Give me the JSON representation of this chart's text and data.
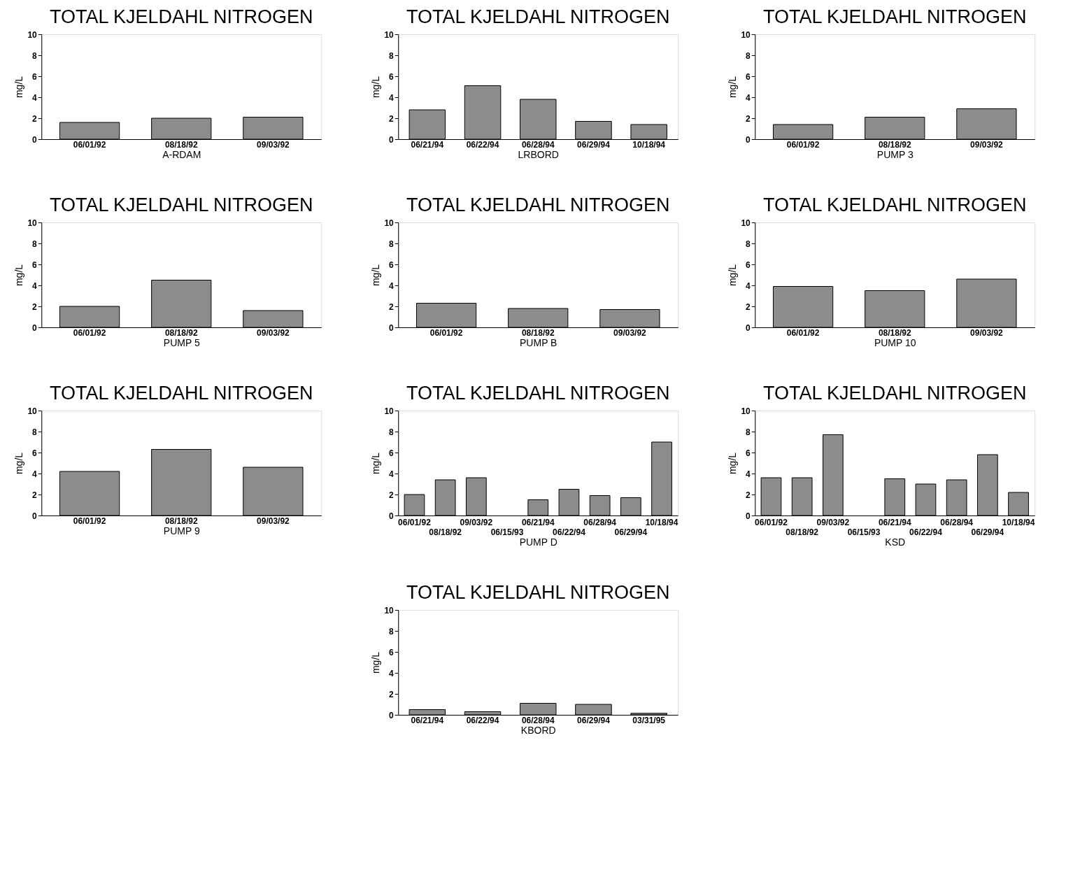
{
  "chart_data": [
    {
      "type": "bar",
      "title": "TOTAL KJELDAHL NITROGEN",
      "xlabel": "A-RDAM",
      "ylabel": "mg/L",
      "categories": [
        "06/01/92",
        "08/18/92",
        "09/03/92"
      ],
      "values": [
        1.6,
        2.0,
        2.1
      ],
      "color": "#8c8c8c",
      "ylim": [
        0,
        10
      ],
      "yticks": [
        0,
        2,
        4,
        6,
        8,
        10
      ]
    },
    {
      "type": "bar",
      "title": "TOTAL KJELDAHL NITROGEN",
      "xlabel": "LRBORD",
      "ylabel": "mg/L",
      "categories": [
        "06/21/94",
        "06/22/94",
        "06/28/94",
        "06/29/94",
        "10/18/94"
      ],
      "values": [
        2.8,
        5.1,
        3.8,
        1.7,
        1.4
      ],
      "color": "#8c8c8c",
      "ylim": [
        0,
        10
      ],
      "yticks": [
        0,
        2,
        4,
        6,
        8,
        10
      ]
    },
    {
      "type": "bar",
      "title": "TOTAL KJELDAHL NITROGEN",
      "xlabel": "PUMP 3",
      "ylabel": "mg/L",
      "categories": [
        "06/01/92",
        "08/18/92",
        "09/03/92"
      ],
      "values": [
        1.4,
        2.1,
        2.9
      ],
      "color": "#8c8c8c",
      "ylim": [
        0,
        10
      ],
      "yticks": [
        0,
        2,
        4,
        6,
        8,
        10
      ]
    },
    {
      "type": "bar",
      "title": "TOTAL KJELDAHL NITROGEN",
      "xlabel": "PUMP 5",
      "ylabel": "mg/L",
      "categories": [
        "06/01/92",
        "08/18/92",
        "09/03/92"
      ],
      "values": [
        2.0,
        4.5,
        1.6
      ],
      "color": "#8c8c8c",
      "ylim": [
        0,
        10
      ],
      "yticks": [
        0,
        2,
        4,
        6,
        8,
        10
      ]
    },
    {
      "type": "bar",
      "title": "TOTAL KJELDAHL NITROGEN",
      "xlabel": "PUMP B",
      "ylabel": "mg/L",
      "categories": [
        "06/01/92",
        "08/18/92",
        "09/03/92"
      ],
      "values": [
        2.3,
        1.8,
        1.7
      ],
      "color": "#8c8c8c",
      "ylim": [
        0,
        10
      ],
      "yticks": [
        0,
        2,
        4,
        6,
        8,
        10
      ]
    },
    {
      "type": "bar",
      "title": "TOTAL KJELDAHL NITROGEN",
      "xlabel": "PUMP 10",
      "ylabel": "mg/L",
      "categories": [
        "06/01/92",
        "08/18/92",
        "09/03/92"
      ],
      "values": [
        3.9,
        3.5,
        4.6
      ],
      "color": "#8c8c8c",
      "ylim": [
        0,
        10
      ],
      "yticks": [
        0,
        2,
        4,
        6,
        8,
        10
      ]
    },
    {
      "type": "bar",
      "title": "TOTAL KJELDAHL NITROGEN",
      "xlabel": "PUMP 9",
      "ylabel": "mg/L",
      "categories": [
        "06/01/92",
        "08/18/92",
        "09/03/92"
      ],
      "values": [
        4.2,
        6.3,
        4.6
      ],
      "color": "#8c8c8c",
      "ylim": [
        0,
        10
      ],
      "yticks": [
        0,
        2,
        4,
        6,
        8,
        10
      ]
    },
    {
      "type": "bar",
      "title": "TOTAL KJELDAHL NITROGEN",
      "xlabel": "PUMP D",
      "ylabel": "mg/L",
      "categories": [
        "06/01/92",
        "08/18/92",
        "09/03/92",
        "06/15/93",
        "06/21/94",
        "06/22/94",
        "06/28/94",
        "06/29/94",
        "10/18/94"
      ],
      "values": [
        2.0,
        3.4,
        3.6,
        null,
        1.5,
        2.5,
        1.9,
        1.7,
        7.0
      ],
      "color": "#8c8c8c",
      "ylim": [
        0,
        10
      ],
      "yticks": [
        0,
        2,
        4,
        6,
        8,
        10
      ]
    },
    {
      "type": "bar",
      "title": "TOTAL KJELDAHL NITROGEN",
      "xlabel": "KSD",
      "ylabel": "mg/L",
      "categories": [
        "06/01/92",
        "08/18/92",
        "09/03/92",
        "06/15/93",
        "06/21/94",
        "06/22/94",
        "06/28/94",
        "06/29/94",
        "10/18/94"
      ],
      "values": [
        3.6,
        3.6,
        7.7,
        null,
        3.5,
        3.0,
        3.4,
        5.8,
        2.2
      ],
      "color": "#8c8c8c",
      "ylim": [
        0,
        10
      ],
      "yticks": [
        0,
        2,
        4,
        6,
        8,
        10
      ]
    },
    {
      "type": "bar",
      "title": "TOTAL KJELDAHL NITROGEN",
      "xlabel": "KBORD",
      "ylabel": "mg/L",
      "categories": [
        "06/21/94",
        "06/22/94",
        "06/28/94",
        "06/29/94",
        "03/31/95"
      ],
      "values": [
        0.5,
        0.3,
        1.1,
        1.0,
        0.15
      ],
      "color": "#8c8c8c",
      "ylim": [
        0,
        10
      ],
      "yticks": [
        0,
        2,
        4,
        6,
        8,
        10
      ]
    }
  ]
}
